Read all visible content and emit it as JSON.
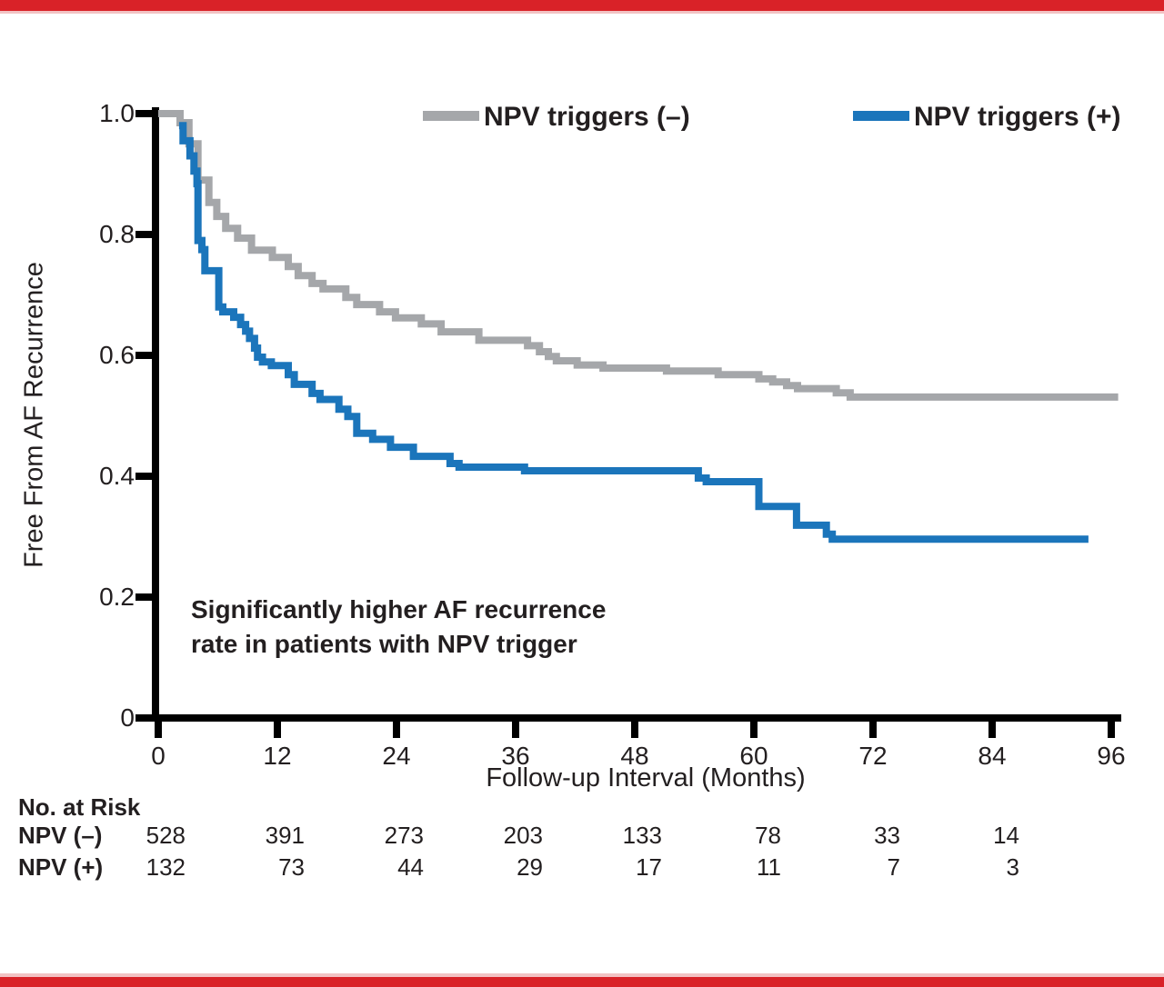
{
  "colors": {
    "accent_red": "#d92228",
    "series_negative": "#a5a7aa",
    "series_positive": "#1b75bb",
    "ink": "#231f20"
  },
  "legend": {
    "negative_label": "NPV triggers (–)",
    "positive_label": "NPV triggers (+)"
  },
  "annotation": {
    "line1": "Significantly higher AF recurrence",
    "line2": "rate in patients with NPV trigger"
  },
  "chart_data": {
    "type": "line",
    "subtype": "kaplan-meier-step",
    "title": "",
    "xlabel": "Follow-up Interval (Months)",
    "ylabel": "Free From AF Recurrence",
    "xlim": [
      0,
      96
    ],
    "ylim": [
      0,
      1.0
    ],
    "x_ticks": [
      0,
      12,
      24,
      36,
      48,
      60,
      72,
      84,
      96
    ],
    "y_ticks": [
      "0",
      "0.2",
      "0.4",
      "0.6",
      "0.8",
      "1.0"
    ],
    "y_tick_values": [
      0,
      0.2,
      0.4,
      0.6,
      0.8,
      1.0
    ],
    "grid": false,
    "legend_position": "top",
    "series": [
      {
        "name": "NPV triggers (–)",
        "color": "#a5a7aa",
        "points": [
          [
            0,
            1.0
          ],
          [
            2.2,
            0.985
          ],
          [
            3.1,
            0.95
          ],
          [
            4.0,
            0.89
          ],
          [
            5.1,
            0.853
          ],
          [
            5.9,
            0.83
          ],
          [
            6.8,
            0.81
          ],
          [
            8.0,
            0.794
          ],
          [
            9.4,
            0.774
          ],
          [
            11.5,
            0.762
          ],
          [
            13.1,
            0.747
          ],
          [
            14.1,
            0.732
          ],
          [
            15.5,
            0.719
          ],
          [
            16.6,
            0.71
          ],
          [
            18.9,
            0.696
          ],
          [
            20.0,
            0.684
          ],
          [
            22.3,
            0.672
          ],
          [
            23.9,
            0.662
          ],
          [
            26.5,
            0.652
          ],
          [
            28.5,
            0.639
          ],
          [
            32.3,
            0.625
          ],
          [
            37.2,
            0.616
          ],
          [
            38.4,
            0.606
          ],
          [
            39.3,
            0.598
          ],
          [
            40.1,
            0.591
          ],
          [
            42.2,
            0.584
          ],
          [
            44.8,
            0.579
          ],
          [
            51.2,
            0.574
          ],
          [
            56.4,
            0.568
          ],
          [
            60.5,
            0.561
          ],
          [
            61.9,
            0.556
          ],
          [
            63.3,
            0.55
          ],
          [
            64.4,
            0.545
          ],
          [
            68.3,
            0.538
          ],
          [
            69.7,
            0.531
          ],
          [
            96.7,
            0.531
          ]
        ]
      },
      {
        "name": "NPV triggers (+)",
        "color": "#1b75bb",
        "points": [
          [
            2.1,
            0.98
          ],
          [
            2.5,
            0.955
          ],
          [
            3.2,
            0.93
          ],
          [
            3.6,
            0.905
          ],
          [
            3.9,
            0.884
          ],
          [
            4.0,
            0.79
          ],
          [
            4.4,
            0.775
          ],
          [
            4.7,
            0.74
          ],
          [
            6.1,
            0.68
          ],
          [
            6.5,
            0.672
          ],
          [
            7.6,
            0.663
          ],
          [
            8.3,
            0.651
          ],
          [
            8.8,
            0.64
          ],
          [
            9.2,
            0.628
          ],
          [
            9.7,
            0.612
          ],
          [
            10.0,
            0.597
          ],
          [
            10.5,
            0.589
          ],
          [
            11.4,
            0.583
          ],
          [
            13.1,
            0.568
          ],
          [
            13.7,
            0.552
          ],
          [
            15.5,
            0.537
          ],
          [
            16.3,
            0.527
          ],
          [
            18.2,
            0.511
          ],
          [
            19.1,
            0.499
          ],
          [
            20.0,
            0.471
          ],
          [
            21.6,
            0.461
          ],
          [
            23.4,
            0.448
          ],
          [
            25.7,
            0.433
          ],
          [
            29.4,
            0.421
          ],
          [
            30.3,
            0.415
          ],
          [
            36.9,
            0.409
          ],
          [
            54.4,
            0.397
          ],
          [
            55.2,
            0.391
          ],
          [
            60.5,
            0.35
          ],
          [
            64.3,
            0.319
          ],
          [
            67.3,
            0.304
          ],
          [
            67.9,
            0.296
          ],
          [
            93.7,
            0.296
          ]
        ]
      }
    ]
  },
  "risk_table": {
    "header": "No. at Risk",
    "time_points": [
      0,
      12,
      24,
      36,
      48,
      60,
      72,
      84
    ],
    "rows": [
      {
        "label": "NPV (–)",
        "values": [
          "528",
          "391",
          "273",
          "203",
          "133",
          "78",
          "33",
          "14"
        ]
      },
      {
        "label": "NPV (+)",
        "values": [
          "132",
          "73",
          "44",
          "29",
          "17",
          "11",
          "7",
          "3"
        ]
      }
    ]
  }
}
